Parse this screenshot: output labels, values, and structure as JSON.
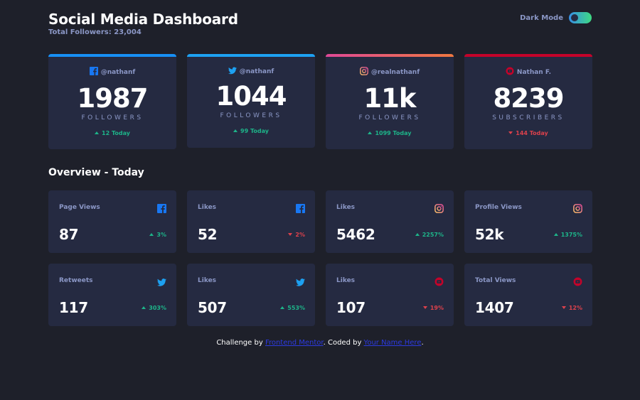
{
  "header": {
    "title": "Social Media Dashboard",
    "subtitle": "Total Followers: 23,004",
    "toggle_label": "Dark Mode"
  },
  "colors": {
    "facebook": "#1877f2",
    "twitter": "#1da1f2",
    "instagram_start": "#fdc468",
    "instagram_end": "#df4996",
    "youtube": "#c4032a",
    "up": "#1db489",
    "down": "#dc414c"
  },
  "cards": [
    {
      "network": "facebook",
      "icon": "facebook-icon",
      "handle": "@nathanf",
      "value": "1987",
      "unit": "FOLLOWERS",
      "change": "12 Today",
      "direction": "up"
    },
    {
      "network": "twitter",
      "icon": "twitter-icon",
      "handle": "@nathanf",
      "value": "1044",
      "unit": "FOLLOWERS",
      "change": "99 Today",
      "direction": "up"
    },
    {
      "network": "instagram",
      "icon": "instagram-icon",
      "handle": "@realnathanf",
      "value": "11k",
      "unit": "FOLLOWERS",
      "change": "1099 Today",
      "direction": "up"
    },
    {
      "network": "youtube",
      "icon": "youtube-icon",
      "handle": "Nathan F.",
      "value": "8239",
      "unit": "SUBSCRIBERS",
      "change": "144 Today",
      "direction": "down"
    }
  ],
  "overview": {
    "title": "Overview - Today",
    "tiles": [
      {
        "label": "Page Views",
        "icon": "facebook-icon",
        "value": "87",
        "change": "3%",
        "direction": "up"
      },
      {
        "label": "Likes",
        "icon": "facebook-icon",
        "value": "52",
        "change": "2%",
        "direction": "down"
      },
      {
        "label": "Likes",
        "icon": "instagram-icon",
        "value": "5462",
        "change": "2257%",
        "direction": "up"
      },
      {
        "label": "Profile Views",
        "icon": "instagram-icon",
        "value": "52k",
        "change": "1375%",
        "direction": "up"
      },
      {
        "label": "Retweets",
        "icon": "twitter-icon",
        "value": "117",
        "change": "303%",
        "direction": "up"
      },
      {
        "label": "Likes",
        "icon": "twitter-icon",
        "value": "507",
        "change": "553%",
        "direction": "up"
      },
      {
        "label": "Likes",
        "icon": "youtube-icon",
        "value": "107",
        "change": "19%",
        "direction": "down"
      },
      {
        "label": "Total Views",
        "icon": "youtube-icon",
        "value": "1407",
        "change": "12%",
        "direction": "down"
      }
    ]
  },
  "footer": {
    "prefix": "Challenge by ",
    "link1": "Frontend Mentor",
    "middle": ". Coded by ",
    "link2": "Your Name Here",
    "suffix": "."
  }
}
